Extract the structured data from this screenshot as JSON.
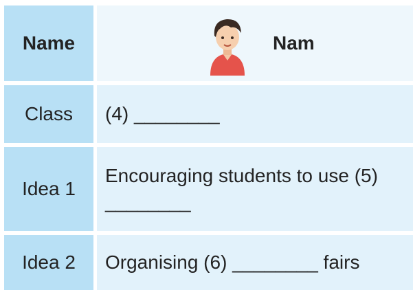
{
  "table": {
    "rows": [
      [
        "Name",
        "Nam"
      ],
      [
        "Class",
        "(4) ________"
      ],
      [
        "Idea 1",
        "Encouraging students to use (5) ________"
      ],
      [
        "Idea 2",
        "Organising (6) ________ fairs"
      ]
    ]
  }
}
